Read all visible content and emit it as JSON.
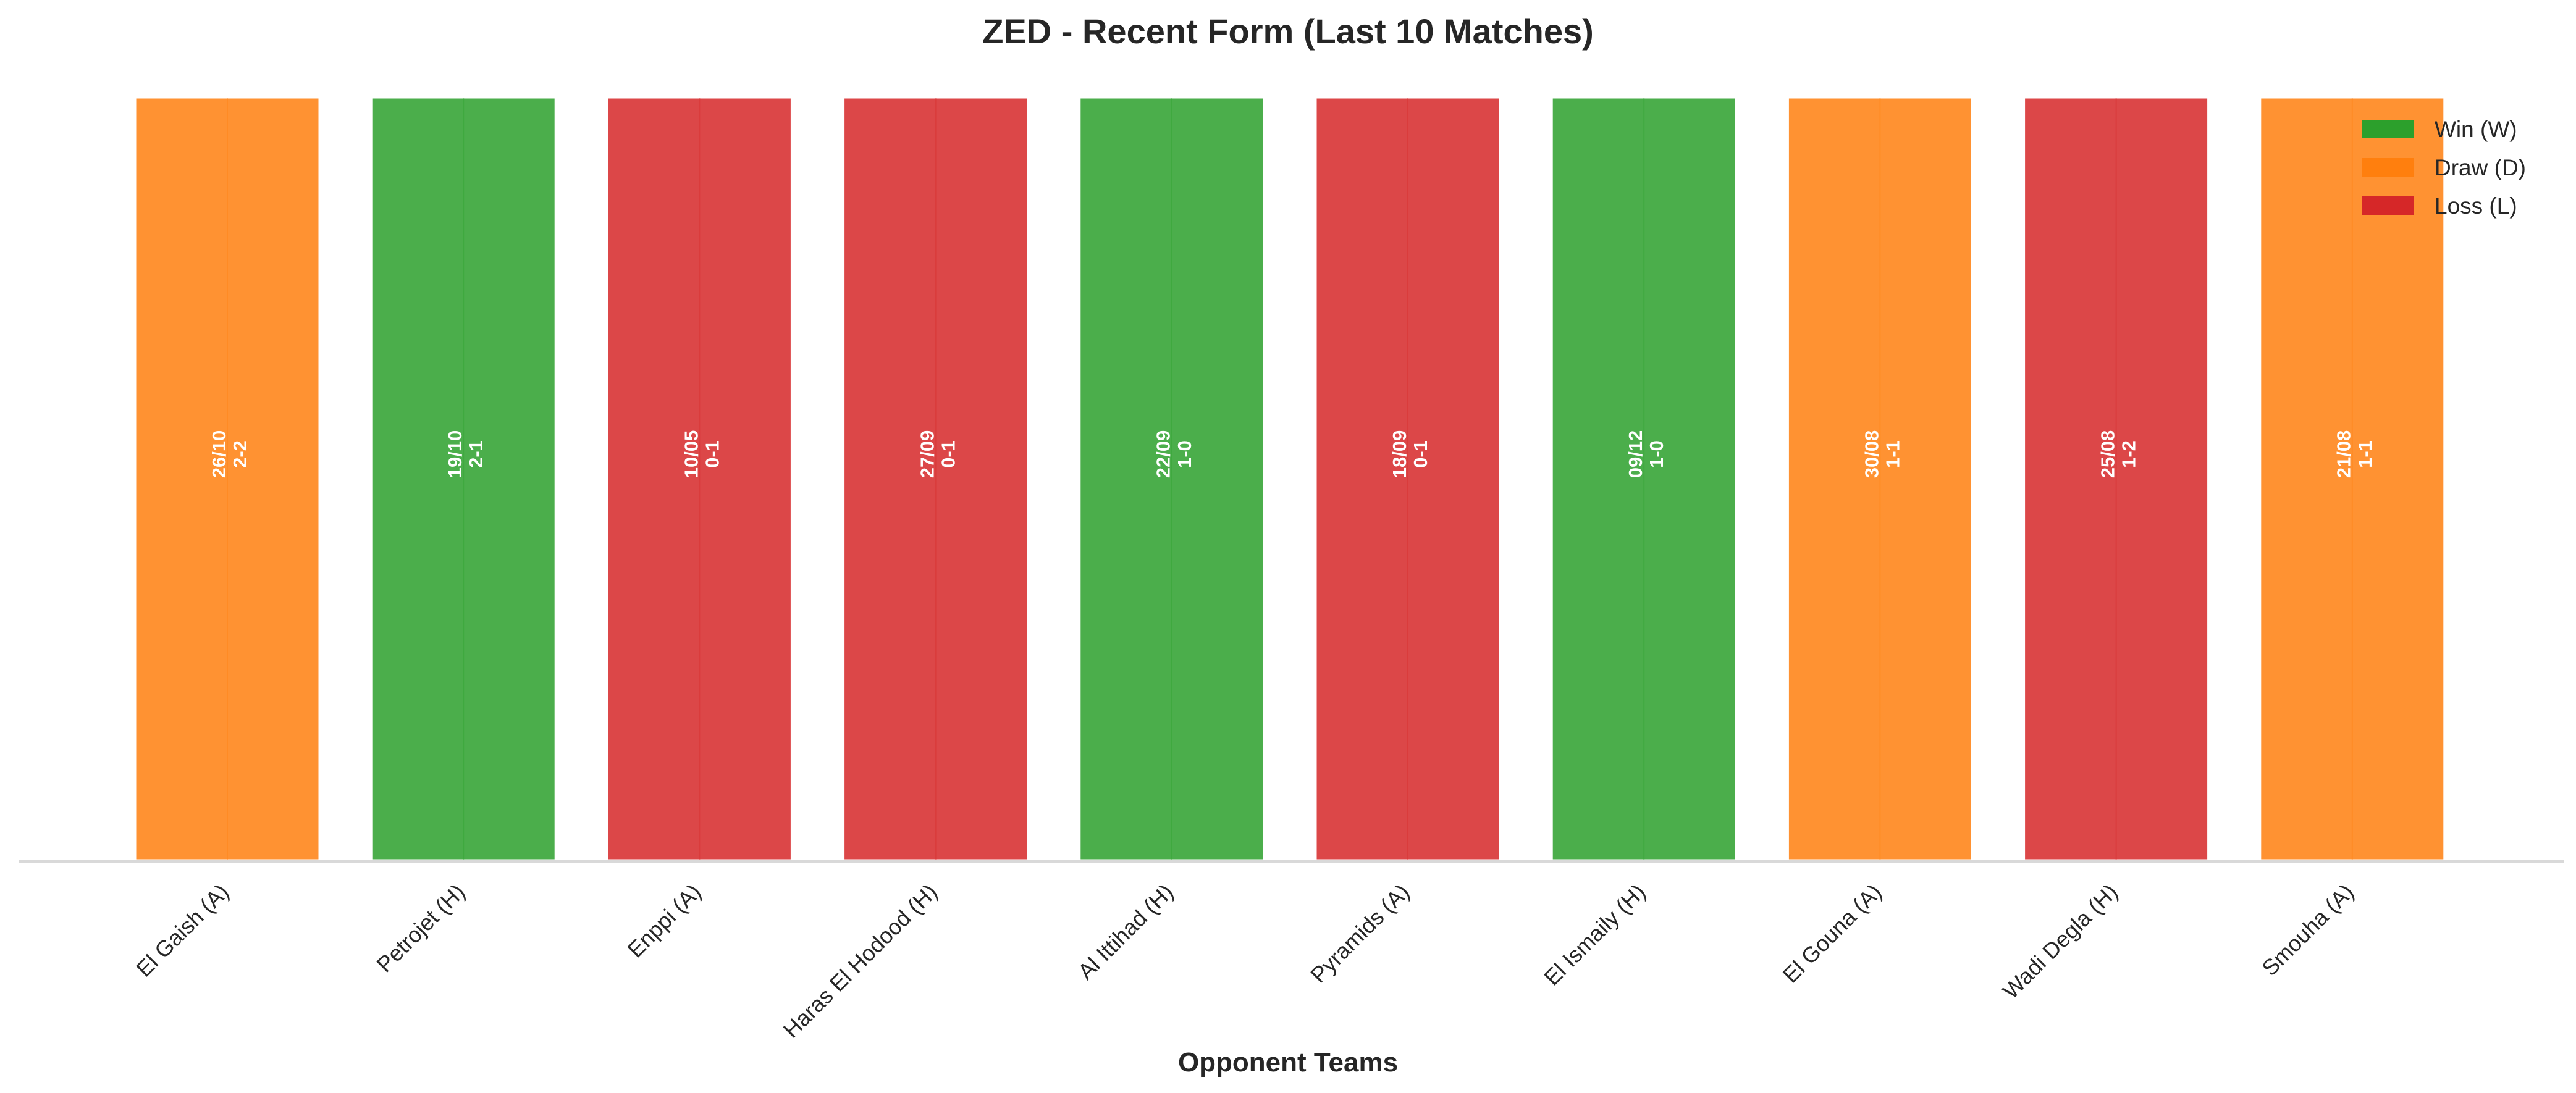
{
  "chart_data": {
    "type": "bar",
    "title": "ZED - Recent Form (Last 10 Matches)",
    "xlabel": "Opponent Teams",
    "ylabel": "",
    "ylim": [
      0,
      1
    ],
    "grid": false,
    "legend_position": "top-right",
    "categories": [
      "El Gaish (A)",
      "Petrojet (H)",
      "Enppi (A)",
      "Haras El Hodood (H)",
      "Al Ittihad (H)",
      "Pyramids (A)",
      "El Ismaily (H)",
      "El Gouna (A)",
      "Wadi Degla (H)",
      "Smouha (A)"
    ],
    "values": [
      1,
      1,
      1,
      1,
      1,
      1,
      1,
      1,
      1,
      1
    ],
    "results": [
      "D",
      "W",
      "L",
      "L",
      "W",
      "L",
      "W",
      "D",
      "L",
      "D"
    ],
    "dates": [
      "26/10",
      "19/10",
      "10/05",
      "27/09",
      "22/09",
      "18/09",
      "09/12",
      "30/08",
      "25/08",
      "21/08"
    ],
    "scores": [
      "2-2",
      "2-1",
      "0-1",
      "0-1",
      "1-0",
      "0-1",
      "1-0",
      "1-1",
      "1-2",
      "1-1"
    ],
    "legend": [
      {
        "key": "W",
        "label": "Win (W)",
        "color": "#2ca02c"
      },
      {
        "key": "D",
        "label": "Draw (D)",
        "color": "#ff7f0e"
      },
      {
        "key": "L",
        "label": "Loss (L)",
        "color": "#d62728"
      }
    ],
    "colors": {
      "W": "#2ca02c",
      "D": "#ff7f0e",
      "L": "#d62728",
      "axis": "#d9d9d9"
    }
  }
}
